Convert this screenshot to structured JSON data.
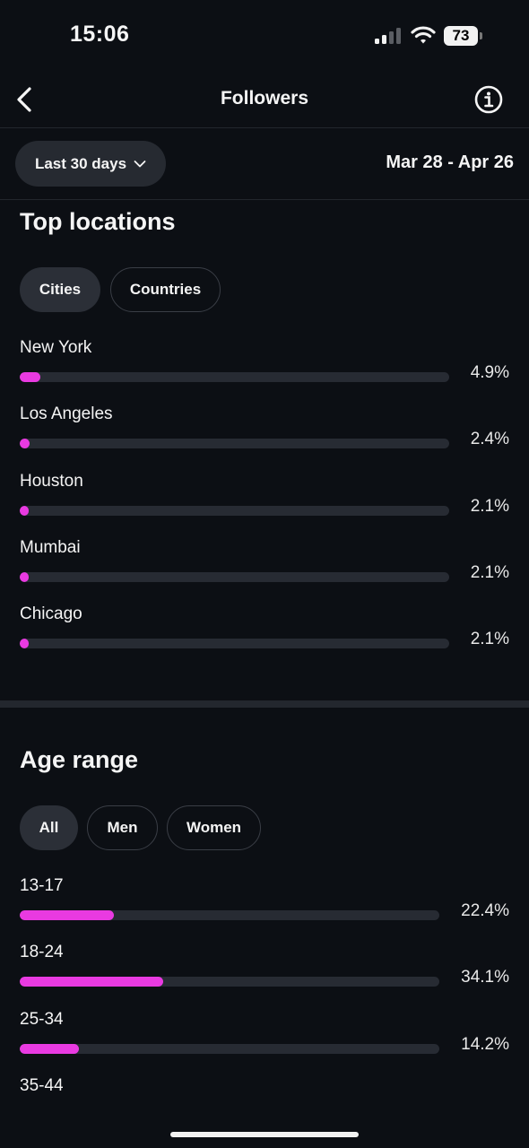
{
  "status": {
    "time": "15:06",
    "battery": "73"
  },
  "nav": {
    "title": "Followers",
    "back_icon": "chevron-left-icon",
    "info_icon": "info-circle-icon"
  },
  "filter": {
    "period_label": "Last 30 days",
    "date_range": "Mar 28 - Apr 26"
  },
  "locations": {
    "title": "Top locations",
    "tabs": [
      {
        "label": "Cities",
        "active": true
      },
      {
        "label": "Countries",
        "active": false
      }
    ],
    "items": [
      {
        "label": "New York",
        "pct": "4.9%",
        "value": 4.9
      },
      {
        "label": "Los Angeles",
        "pct": "2.4%",
        "value": 2.4
      },
      {
        "label": "Houston",
        "pct": "2.1%",
        "value": 2.1
      },
      {
        "label": "Mumbai",
        "pct": "2.1%",
        "value": 2.1
      },
      {
        "label": "Chicago",
        "pct": "2.1%",
        "value": 2.1
      }
    ]
  },
  "age": {
    "title": "Age range",
    "tabs": [
      {
        "label": "All",
        "active": true
      },
      {
        "label": "Men",
        "active": false
      },
      {
        "label": "Women",
        "active": false
      }
    ],
    "items": [
      {
        "label": "13-17",
        "pct": "22.4%",
        "value": 22.4
      },
      {
        "label": "18-24",
        "pct": "34.1%",
        "value": 34.1
      },
      {
        "label": "25-34",
        "pct": "14.2%",
        "value": 14.2
      },
      {
        "label": "35-44"
      }
    ]
  },
  "colors": {
    "accent": "#e93ae1",
    "background": "#0c0f14",
    "track": "#272b33"
  }
}
